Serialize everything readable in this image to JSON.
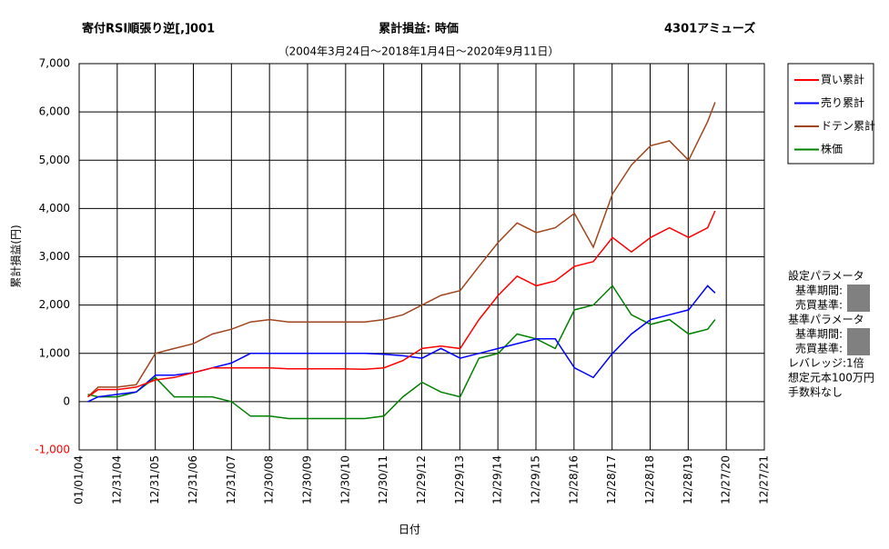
{
  "chart_data": {
    "type": "line",
    "title": "寄付RSI順張り逆[,]001",
    "subtitle": "累計損益: 時価",
    "stock_name": "4301アミューズ",
    "period": "（2004年3月24日～2018年1月4日～2020年9月11日）",
    "y_label": "累計損益(円)",
    "x_label": "日付",
    "x": [
      "2004-03-24",
      "2004-07-01",
      "2005-01-01",
      "2005-07-01",
      "2006-01-01",
      "2006-07-01",
      "2007-01-01",
      "2007-07-01",
      "2008-01-01",
      "2008-07-01",
      "2009-01-01",
      "2009-07-01",
      "2010-01-01",
      "2010-07-01",
      "2011-01-01",
      "2011-07-01",
      "2012-01-01",
      "2012-07-01",
      "2013-01-01",
      "2013-07-01",
      "2014-01-01",
      "2014-07-01",
      "2015-01-01",
      "2015-07-01",
      "2016-01-01",
      "2016-07-01",
      "2017-01-01",
      "2017-07-01",
      "2018-01-01",
      "2018-07-01",
      "2019-01-01",
      "2019-07-01",
      "2020-01-01",
      "2020-07-01",
      "2020-09-11"
    ],
    "series": [
      {
        "name": "買い累計",
        "color": "#ff0000",
        "values": [
          100,
          250,
          250,
          300,
          450,
          500,
          600,
          700,
          700,
          700,
          700,
          680,
          680,
          680,
          680,
          670,
          700,
          850,
          1100,
          1150,
          1100,
          1700,
          2200,
          2600,
          2400,
          2500,
          2800,
          2900,
          3400,
          3100,
          3400,
          3600,
          3400,
          3600,
          3950
        ]
      },
      {
        "name": "売り累計",
        "color": "#0000ff",
        "values": [
          0,
          100,
          150,
          200,
          550,
          550,
          600,
          700,
          800,
          1000,
          1000,
          1000,
          1000,
          1000,
          1000,
          1000,
          980,
          950,
          900,
          1100,
          900,
          1000,
          1100,
          1200,
          1300,
          1300,
          700,
          500,
          1000,
          1400,
          1700,
          1800,
          1900,
          2400,
          2250
        ]
      },
      {
        "name": "ドテン累計",
        "color": "#a0461e",
        "values": [
          100,
          300,
          300,
          350,
          1000,
          1100,
          1200,
          1400,
          1500,
          1650,
          1700,
          1650,
          1650,
          1650,
          1650,
          1650,
          1700,
          1800,
          2000,
          2200,
          2300,
          2800,
          3300,
          3700,
          3500,
          3600,
          3900,
          3200,
          4300,
          4900,
          5300,
          5400,
          5000,
          5800,
          6200
        ]
      },
      {
        "name": "株価",
        "color": "#008000",
        "values": [
          150,
          100,
          100,
          200,
          500,
          100,
          100,
          100,
          0,
          -300,
          -300,
          -350,
          -350,
          -350,
          -350,
          -350,
          -300,
          100,
          400,
          200,
          100,
          900,
          1000,
          1400,
          1300,
          1100,
          1900,
          2000,
          2400,
          1800,
          1600,
          1700,
          1400,
          1500,
          1700
        ]
      }
    ],
    "ylim": [
      -1000,
      7000
    ],
    "yticks": [
      {
        "value": -1000,
        "label": "-1,000"
      },
      0,
      {
        "value": 1000,
        "label": "1,000"
      },
      {
        "value": 2000,
        "label": "2,000"
      },
      {
        "value": 3000,
        "label": "3,000"
      },
      {
        "value": 4000,
        "label": "4,000"
      },
      {
        "value": 5000,
        "label": "5,000"
      },
      {
        "value": 6000,
        "label": "6,000"
      },
      {
        "value": 7000,
        "label": "7,000"
      }
    ],
    "xlim": [
      "2004-01-01",
      "2021-12-27"
    ],
    "xticks": [
      {
        "value": "2004-01-01",
        "label": "01/01/04"
      },
      {
        "value": "2004-12-31",
        "label": "12/31/04"
      },
      {
        "value": "2005-12-31",
        "label": "12/31/05"
      },
      {
        "value": "2006-12-31",
        "label": "12/31/06"
      },
      {
        "value": "2007-12-31",
        "label": "12/31/07"
      },
      {
        "value": "2008-12-30",
        "label": "12/30/08"
      },
      {
        "value": "2009-12-30",
        "label": "12/30/09"
      },
      {
        "value": "2010-12-30",
        "label": "12/30/10"
      },
      {
        "value": "2011-12-30",
        "label": "12/30/11"
      },
      {
        "value": "2012-12-29",
        "label": "12/29/12"
      },
      {
        "value": "2013-12-29",
        "label": "12/29/13"
      },
      {
        "value": "2014-12-29",
        "label": "12/29/14"
      },
      {
        "value": "2015-12-29",
        "label": "12/29/15"
      },
      {
        "value": "2016-12-28",
        "label": "12/28/16"
      },
      {
        "value": "2017-12-28",
        "label": "12/28/17"
      },
      {
        "value": "2018-12-28",
        "label": "12/28/18"
      },
      {
        "value": "2019-12-28",
        "label": "12/28/19"
      },
      {
        "value": "2020-12-27",
        "label": "12/27/20"
      },
      {
        "value": "2021-12-27",
        "label": "12/27/21"
      }
    ],
    "grid": true,
    "legend": "right",
    "params": [
      "設定パラメータ",
      "基準期間:",
      "売買基準:",
      "基準パラメータ",
      "基準期間:",
      "売買基準:",
      "レバレッジ:1倍",
      "想定元本100万円",
      "手数料なし"
    ]
  }
}
